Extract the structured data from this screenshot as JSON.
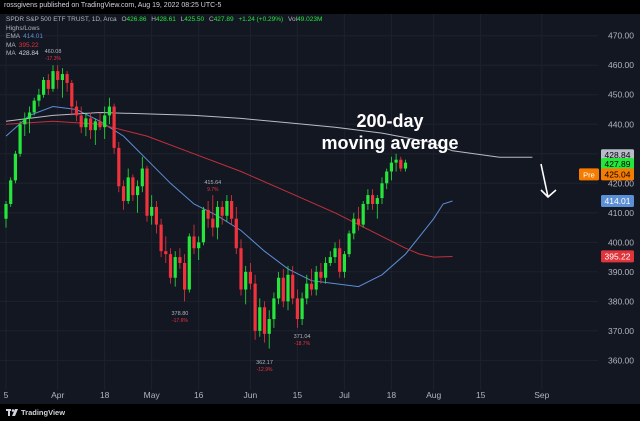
{
  "header": {
    "published": "rossgivens published on TradingView.com, Aug 19, 2022 08:25 UTC-5"
  },
  "legend": {
    "symbol": "SPDR S&P 500 ETF TRUST, 1D, Arca",
    "ohlc": {
      "o_label": "O",
      "o": "426.86",
      "h_label": "H",
      "h": "428.61",
      "l_label": "L",
      "l": "425.50",
      "c_label": "C",
      "c": "427.89",
      "chg": "+1.24 (+0.29%)",
      "vol_label": "Vol",
      "vol": "49.023M"
    },
    "highs_lows": "Highs/Lows",
    "ema_label": "EMA",
    "ema_value": "414.01",
    "ma1_label": "MA",
    "ma1_value": "395.22",
    "ma2_label": "MA",
    "ma2_value": "428.84"
  },
  "annotation": {
    "line1": "200-day",
    "line2": "moving average"
  },
  "footer": {
    "brand": "TradingView"
  },
  "colors": {
    "up": "#26e63c",
    "down": "#f0323c",
    "ema": "#5b8fd6",
    "ma50": "#c2303a",
    "ma200": "#b8bcc8",
    "text": "#b2b5be",
    "bg": "#131722"
  },
  "chart_data": {
    "type": "candlestick",
    "ylim": [
      352,
      476
    ],
    "y_ticks": [
      360,
      370,
      380,
      390,
      400,
      410,
      420,
      430,
      440,
      450,
      460,
      470
    ],
    "y_tick_labels": [
      "360.00",
      "370.00",
      "380.00",
      "390.00",
      "400.00",
      "410.00",
      "420.00",
      "430.00",
      "440.00",
      "450.00",
      "460.00",
      "470.00"
    ],
    "x_tick_labels": [
      {
        "label": "5",
        "index": 0
      },
      {
        "label": "Apr",
        "index": 11
      },
      {
        "label": "18",
        "index": 21
      },
      {
        "label": "May",
        "index": 31
      },
      {
        "label": "16",
        "index": 41
      },
      {
        "label": "Jun",
        "index": 52
      },
      {
        "label": "15",
        "index": 62
      },
      {
        "label": "Jul",
        "index": 72
      },
      {
        "label": "18",
        "index": 82
      },
      {
        "label": "Aug",
        "index": 91
      },
      {
        "label": "15",
        "index": 101
      },
      {
        "label": "Sep",
        "index": 114
      }
    ],
    "candles": [
      [
        408,
        414,
        405,
        413
      ],
      [
        413,
        422,
        412,
        421
      ],
      [
        421,
        431,
        420,
        430
      ],
      [
        430,
        441,
        429,
        440
      ],
      [
        440,
        444,
        436,
        442
      ],
      [
        442,
        446,
        437,
        444
      ],
      [
        444,
        449,
        443,
        448
      ],
      [
        448,
        452,
        446,
        450
      ],
      [
        450,
        456,
        449,
        455
      ],
      [
        455,
        457,
        450,
        452
      ],
      [
        452,
        460,
        451,
        458
      ],
      [
        458,
        460,
        452,
        455
      ],
      [
        455,
        459,
        449,
        457
      ],
      [
        457,
        458,
        451,
        454
      ],
      [
        454,
        455,
        443,
        446
      ],
      [
        446,
        448,
        441,
        443
      ],
      [
        443,
        446,
        437,
        439
      ],
      [
        439,
        444,
        436,
        442
      ],
      [
        442,
        444,
        435,
        438
      ],
      [
        438,
        442,
        433,
        441
      ],
      [
        441,
        444,
        438,
        439
      ],
      [
        439,
        446,
        435,
        443
      ],
      [
        443,
        449,
        440,
        446
      ],
      [
        446,
        447,
        430,
        432
      ],
      [
        432,
        434,
        417,
        419
      ],
      [
        419,
        421,
        411,
        414
      ],
      [
        414,
        425,
        413,
        422
      ],
      [
        422,
        423,
        414,
        416
      ],
      [
        416,
        421,
        410,
        419
      ],
      [
        419,
        429,
        417,
        425
      ],
      [
        425,
        426,
        407,
        409
      ],
      [
        409,
        416,
        406,
        412
      ],
      [
        412,
        414,
        403,
        406
      ],
      [
        406,
        408,
        395,
        397
      ],
      [
        397,
        402,
        393,
        396
      ],
      [
        396,
        398,
        386,
        388
      ],
      [
        388,
        397,
        385,
        395
      ],
      [
        395,
        398,
        391,
        393
      ],
      [
        393,
        396,
        380,
        384
      ],
      [
        384,
        403,
        383,
        402
      ],
      [
        402,
        406,
        396,
        398
      ],
      [
        398,
        402,
        394,
        400
      ],
      [
        400,
        412,
        399,
        411
      ],
      [
        411,
        414,
        405,
        408
      ],
      [
        408,
        416,
        402,
        405
      ],
      [
        405,
        414,
        401,
        412
      ],
      [
        412,
        414,
        406,
        409
      ],
      [
        409,
        416,
        407,
        414
      ],
      [
        414,
        416,
        406,
        408
      ],
      [
        408,
        412,
        396,
        398
      ],
      [
        398,
        401,
        382,
        384
      ],
      [
        384,
        392,
        379,
        390
      ],
      [
        390,
        393,
        384,
        386
      ],
      [
        386,
        389,
        367,
        370
      ],
      [
        370,
        381,
        368,
        378
      ],
      [
        378,
        380,
        366,
        369
      ],
      [
        369,
        377,
        364,
        374
      ],
      [
        374,
        383,
        371,
        381
      ],
      [
        381,
        390,
        379,
        388
      ],
      [
        388,
        391,
        378,
        380
      ],
      [
        380,
        392,
        377,
        389
      ],
      [
        389,
        392,
        379,
        381
      ],
      [
        381,
        384,
        371,
        374
      ],
      [
        374,
        383,
        372,
        381
      ],
      [
        381,
        389,
        379,
        386
      ],
      [
        386,
        391,
        382,
        384
      ],
      [
        384,
        392,
        382,
        390
      ],
      [
        390,
        393,
        386,
        388
      ],
      [
        388,
        395,
        386,
        393
      ],
      [
        393,
        397,
        392,
        395
      ],
      [
        395,
        400,
        393,
        398
      ],
      [
        398,
        401,
        388,
        390
      ],
      [
        390,
        397,
        388,
        396
      ],
      [
        396,
        404,
        395,
        403
      ],
      [
        403,
        410,
        401,
        408
      ],
      [
        408,
        412,
        404,
        406
      ],
      [
        406,
        414,
        405,
        413
      ],
      [
        413,
        418,
        411,
        416
      ],
      [
        416,
        418,
        411,
        413
      ],
      [
        413,
        416,
        408,
        415
      ],
      [
        415,
        422,
        413,
        420
      ],
      [
        420,
        425,
        418,
        424
      ],
      [
        424,
        429,
        421,
        427
      ],
      [
        427,
        430,
        424,
        428
      ],
      [
        428,
        429,
        424,
        425
      ],
      [
        425,
        428,
        424,
        427
      ]
    ],
    "lines": [
      {
        "name": "EMA",
        "color": "#5b8fd6",
        "points": [
          [
            0,
            436
          ],
          [
            5,
            443
          ],
          [
            10,
            446
          ],
          [
            15,
            445
          ],
          [
            20,
            441
          ],
          [
            25,
            436
          ],
          [
            30,
            428
          ],
          [
            35,
            420
          ],
          [
            40,
            413
          ],
          [
            45,
            409
          ],
          [
            50,
            404
          ],
          [
            55,
            397
          ],
          [
            60,
            391
          ],
          [
            65,
            387
          ],
          [
            70,
            386
          ],
          [
            75,
            385
          ],
          [
            80,
            389
          ],
          [
            85,
            396
          ],
          [
            88,
            402
          ],
          [
            91,
            408
          ],
          [
            93,
            413
          ],
          [
            95,
            414
          ]
        ]
      },
      {
        "name": "MA",
        "color": "#c2303a",
        "points": [
          [
            0,
            440
          ],
          [
            10,
            441
          ],
          [
            20,
            440
          ],
          [
            30,
            436
          ],
          [
            40,
            430
          ],
          [
            50,
            424
          ],
          [
            60,
            417
          ],
          [
            70,
            410
          ],
          [
            80,
            402
          ],
          [
            85,
            398
          ],
          [
            88,
            396
          ],
          [
            91,
            395
          ],
          [
            95,
            395.2
          ]
        ]
      },
      {
        "name": "MA",
        "color": "#b8bcc8",
        "points": [
          [
            0,
            441
          ],
          [
            10,
            443
          ],
          [
            20,
            444
          ],
          [
            30,
            443.5
          ],
          [
            40,
            443
          ],
          [
            50,
            442
          ],
          [
            60,
            440.5
          ],
          [
            70,
            439
          ],
          [
            80,
            437
          ],
          [
            90,
            434
          ],
          [
            95,
            431
          ],
          [
            105,
            428.8
          ],
          [
            112,
            428.84
          ]
        ]
      }
    ],
    "price_labels": [
      {
        "value": 428.84,
        "text": "428.84",
        "bg": "#b8bcc8",
        "fg": "#000000"
      },
      {
        "value": 427.89,
        "text": "427.89",
        "bg": "#26e63c",
        "fg": "#000000"
      },
      {
        "value": 425.04,
        "text": "425.04",
        "bg": "#f57c00",
        "fg": "#000000",
        "tag": "Pre"
      },
      {
        "value": 414.01,
        "text": "414.01",
        "bg": "#5b8fd6",
        "fg": "#ffffff"
      },
      {
        "value": 395.22,
        "text": "395.22",
        "bg": "#e0343c",
        "fg": "#ffffff"
      }
    ],
    "extremes": [
      {
        "index": 10,
        "price": 460.08,
        "label": "460.08",
        "sub": "-17.3%"
      },
      {
        "index": 44,
        "price": 415.64,
        "label": "415.64",
        "sub": "9.7%"
      },
      {
        "index": 37,
        "price": 378.8,
        "label": "378.80",
        "sub": "-17.6%"
      },
      {
        "index": 55,
        "price": 362.17,
        "label": "362.17",
        "sub": "-12.9%"
      },
      {
        "index": 63,
        "price": 371.04,
        "label": "371.04",
        "sub": "-18.7%"
      }
    ]
  }
}
